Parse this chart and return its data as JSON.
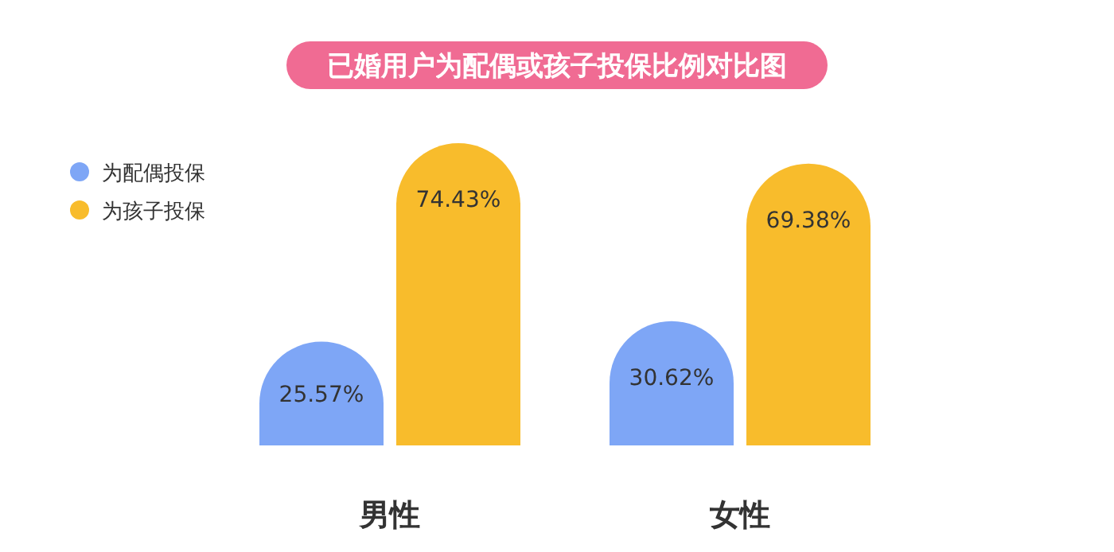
{
  "chart_data": {
    "type": "bar",
    "title": "已婚用户为配偶或孩子投保比例对比图",
    "categories": [
      "男性",
      "女性"
    ],
    "series": [
      {
        "name": "为配偶投保",
        "color": "#7ea6f6",
        "values": [
          25.57,
          30.62
        ],
        "value_labels": [
          "25.57%",
          "30.62%"
        ]
      },
      {
        "name": "为孩子投保",
        "color": "#f8bc2c",
        "values": [
          74.43,
          69.38
        ],
        "value_labels": [
          "74.43%",
          "69.38%"
        ]
      }
    ],
    "legend": "top left"
  }
}
